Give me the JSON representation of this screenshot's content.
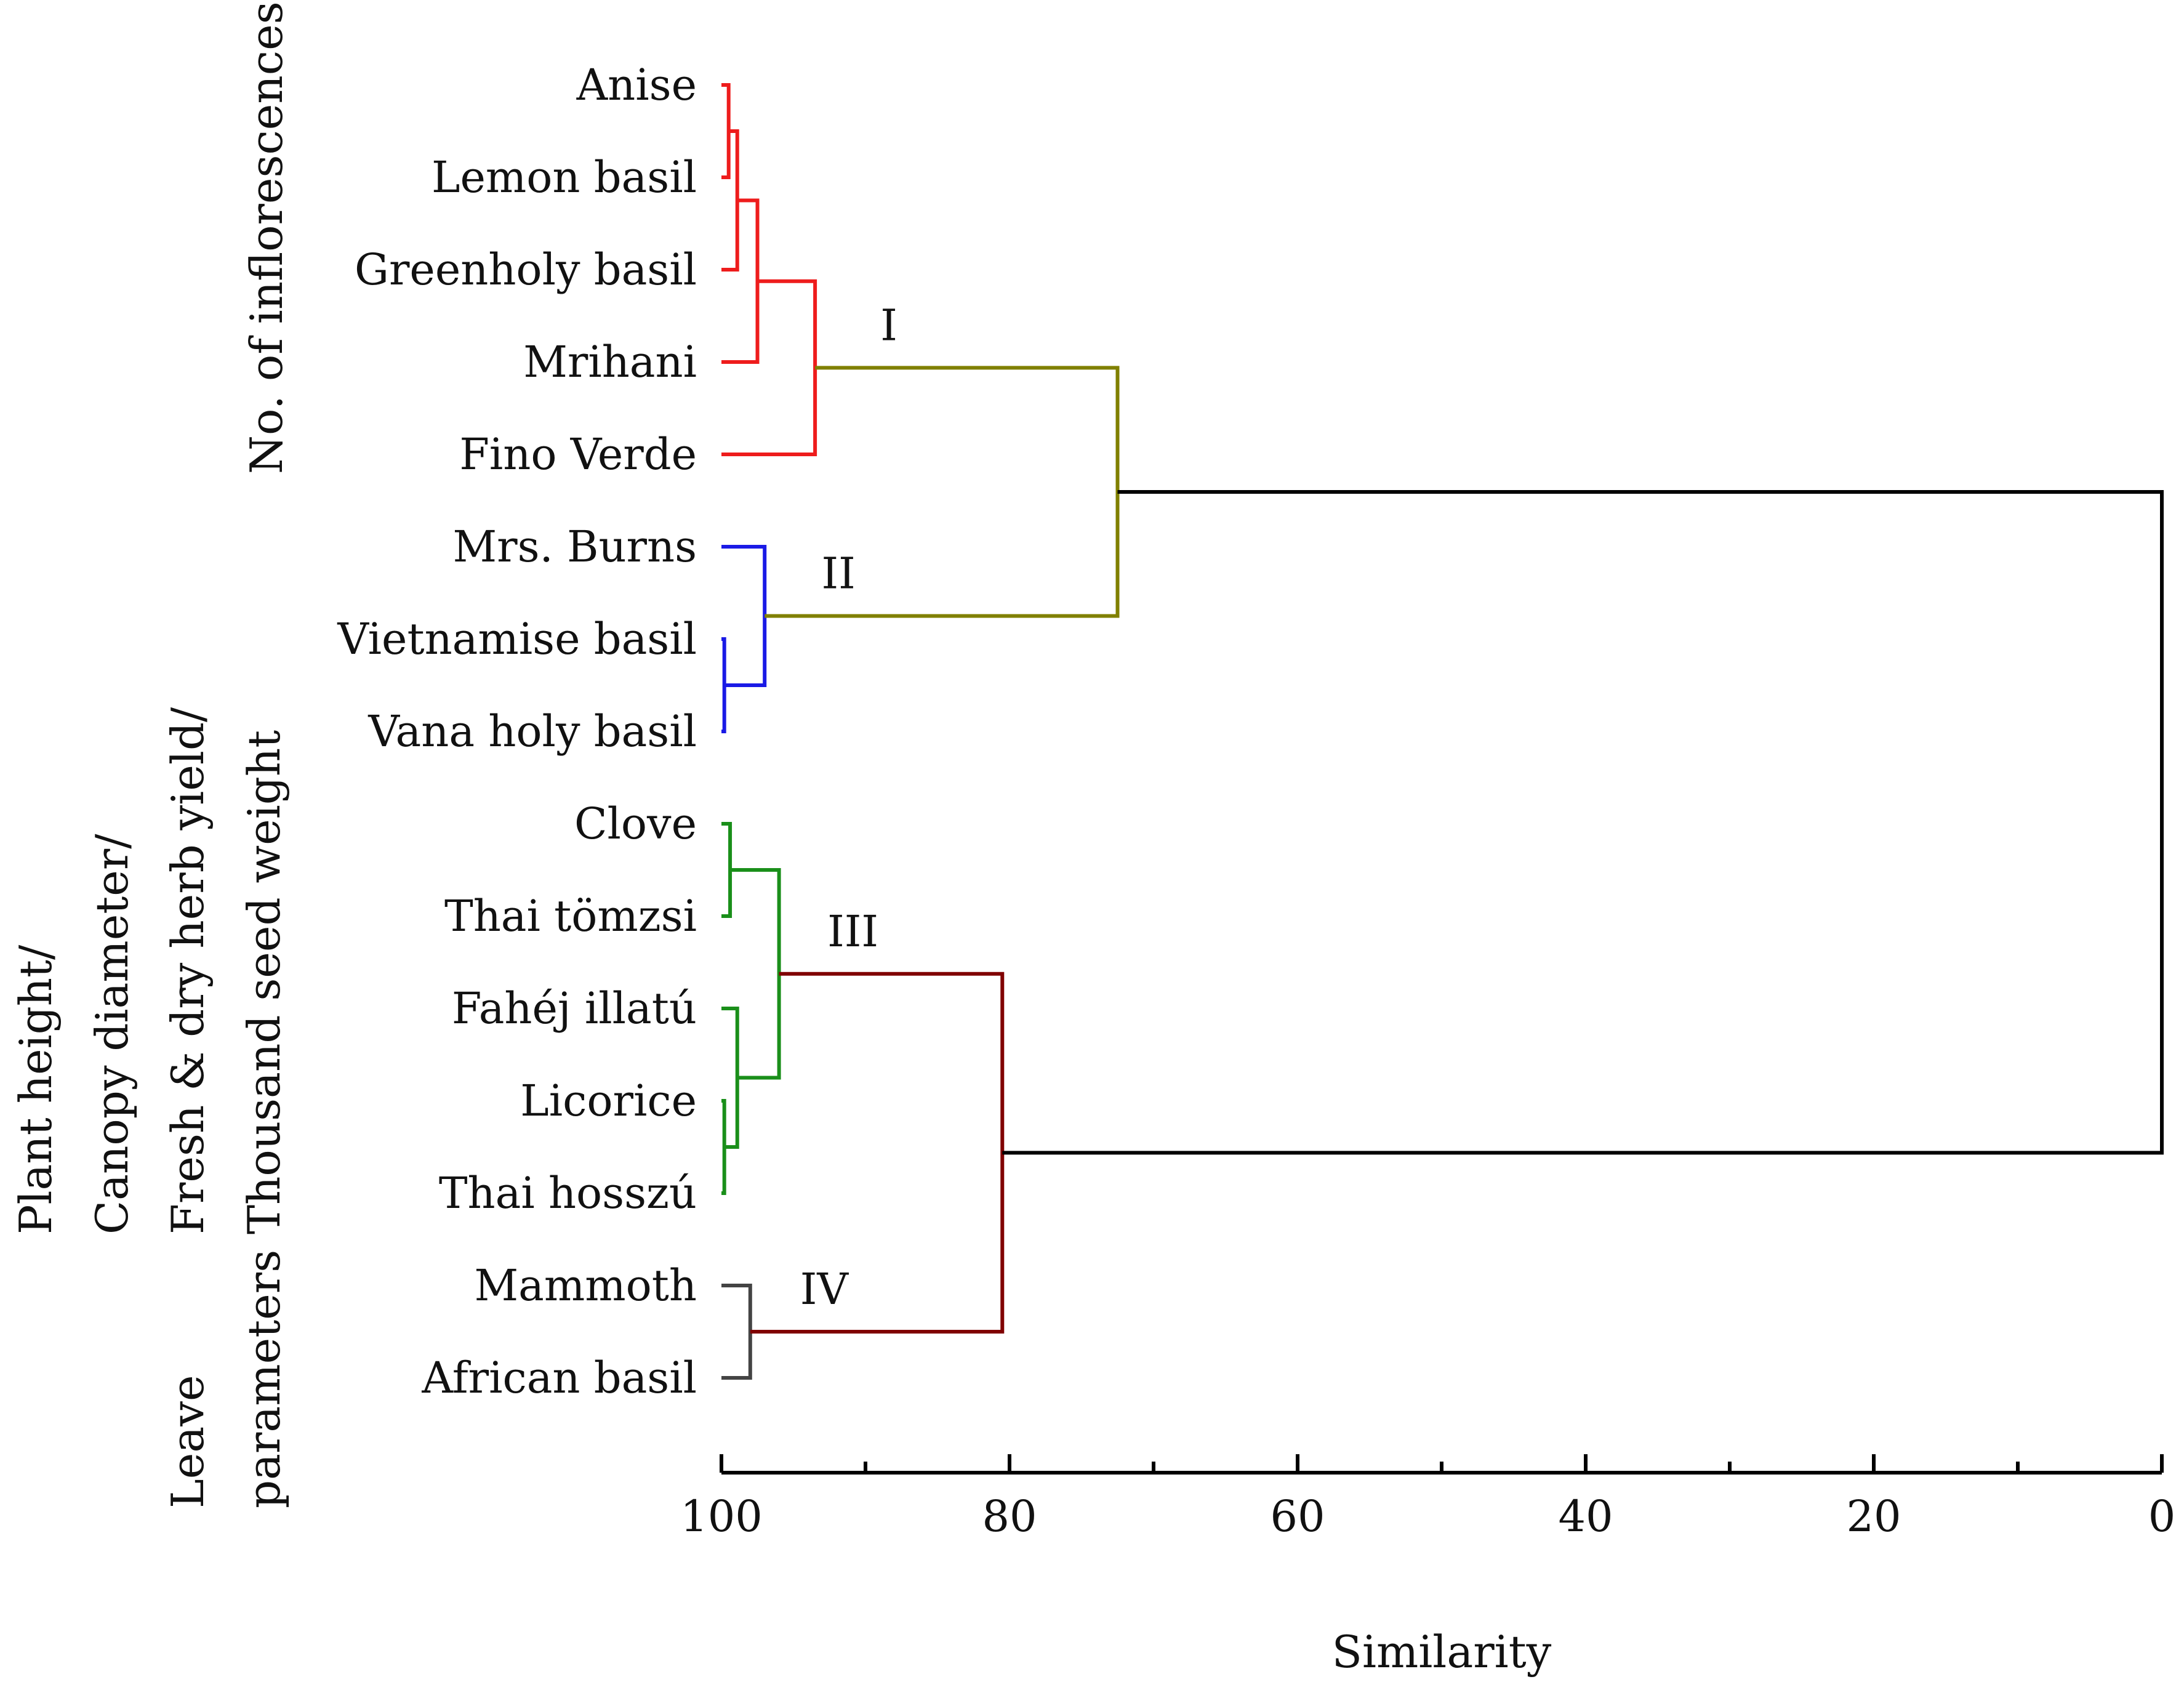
{
  "chart_data": {
    "type": "dendrogram",
    "title": "",
    "xlabel": "Similarity",
    "ylabel": "",
    "xlim": [
      100,
      0
    ],
    "x_ticks": [
      "100",
      "80",
      "60",
      "40",
      "20",
      "0"
    ],
    "x_tick_values": [
      100,
      80,
      60,
      40,
      20,
      0
    ],
    "x_minor_tick_values": [
      90,
      70,
      50,
      30,
      10
    ],
    "leaves": [
      "Anise",
      "Lemon basil",
      "Greenholy basil",
      "Mrihani",
      "Fino Verde",
      "Mrs. Burns",
      "Vietnamise basil",
      "Vana holy basil",
      "Clove",
      "Thai tömzsi",
      "Fahéj illatú",
      "Licorice",
      "Thai hosszú",
      "Mammoth",
      "African basil"
    ],
    "merges": [
      {
        "id": "m1",
        "children": [
          "Anise",
          "Lemon basil"
        ],
        "similarity": 99.5,
        "color": "#ee1c1c"
      },
      {
        "id": "m2",
        "children": [
          "m1",
          "Greenholy basil"
        ],
        "similarity": 98.9,
        "color": "#ee1c1c"
      },
      {
        "id": "m3",
        "children": [
          "m2",
          "Mrihani"
        ],
        "similarity": 97.5,
        "color": "#ee1c1c"
      },
      {
        "id": "m4",
        "children": [
          "m3",
          "Fino Verde"
        ],
        "similarity": 93.5,
        "color": "#ee1c1c"
      },
      {
        "id": "m5",
        "children": [
          "Vietnamise basil",
          "Vana holy basil"
        ],
        "similarity": 99.8,
        "color": "#1a1ae6"
      },
      {
        "id": "m6",
        "children": [
          "Mrs. Burns",
          "m5"
        ],
        "similarity": 97.0,
        "color": "#1a1ae6"
      },
      {
        "id": "m7",
        "children": [
          "m4",
          "m6"
        ],
        "similarity": 72.5,
        "color": "#808000"
      },
      {
        "id": "m8",
        "children": [
          "Clove",
          "Thai tömzsi"
        ],
        "similarity": 99.4,
        "color": "#1a8f1a"
      },
      {
        "id": "m9",
        "children": [
          "Licorice",
          "Thai hosszú"
        ],
        "similarity": 99.8,
        "color": "#1a8f1a"
      },
      {
        "id": "m10",
        "children": [
          "Fahéj illatú",
          "m9"
        ],
        "similarity": 98.9,
        "color": "#1a8f1a"
      },
      {
        "id": "m11",
        "children": [
          "m8",
          "m10"
        ],
        "similarity": 96.0,
        "color": "#1a8f1a"
      },
      {
        "id": "m12",
        "children": [
          "Mammoth",
          "African basil"
        ],
        "similarity": 98.0,
        "color": "#444444"
      },
      {
        "id": "m13",
        "children": [
          "m11",
          "m12"
        ],
        "similarity": 80.5,
        "color": "#800000"
      },
      {
        "id": "m14",
        "children": [
          "m7",
          "m13"
        ],
        "similarity": 0,
        "color": "#000000"
      }
    ],
    "cluster_labels": [
      {
        "text": "I",
        "at": "m4"
      },
      {
        "text": "II",
        "at": "m6"
      },
      {
        "text": "III",
        "at": "m11"
      },
      {
        "text": "IV",
        "at": "m12"
      }
    ],
    "side_labels": {
      "group1": [
        "No. of inflorescences"
      ],
      "group2": [
        "Plant height/",
        "Canopy diameter/",
        "Fresh & dry herb yield/",
        "Thousand seed weight"
      ],
      "group3": [
        "Leave",
        "parameters"
      ]
    }
  }
}
